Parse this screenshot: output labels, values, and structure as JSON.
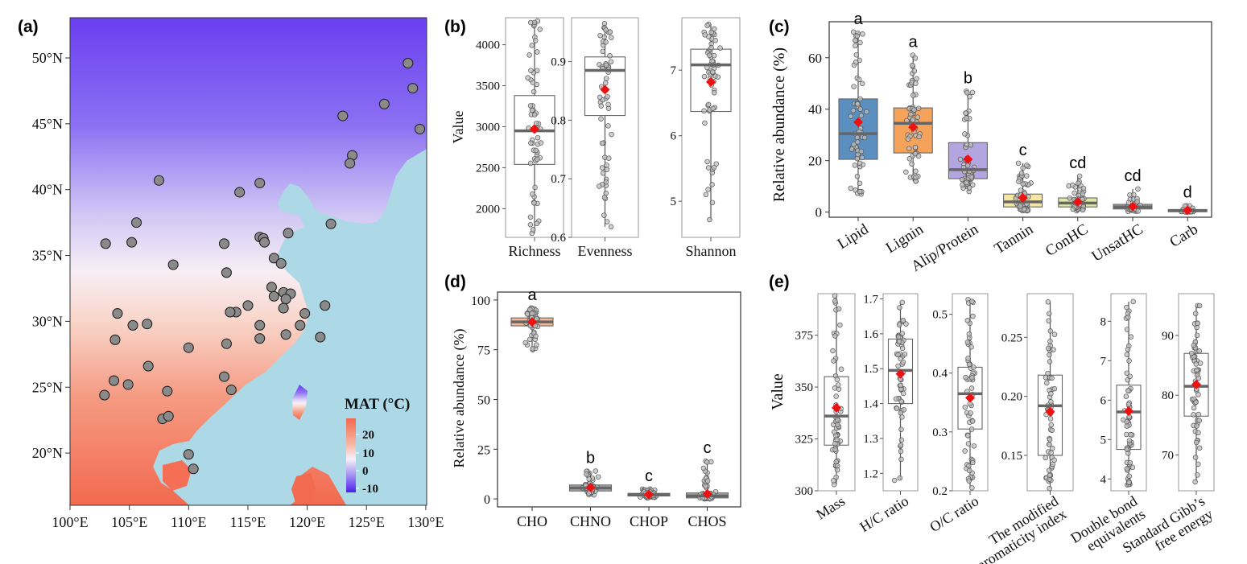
{
  "colors": {
    "cold": "#6a3ff0",
    "mid": "#f6f0fb",
    "warm": "#f26a4f",
    "sea": "#add8e6",
    "site_fill": "#8a8a8a",
    "mean_marker": "#ee1111",
    "jitter_fill": "#bfbfbf",
    "box_fill_c": [
      "#5b8fbf",
      "#f5a25a",
      "#b3a6e0",
      "#f6e6a3",
      "#dfe9a4",
      "#aaaaaa",
      "#aaaaaa"
    ],
    "box_fill_d": [
      "#f5b79a",
      "#aaaaaa",
      "#aaaaaa",
      "#aaaaaa"
    ]
  },
  "panels": {
    "a": {
      "label": "(a)"
    },
    "b": {
      "label": "(b)"
    },
    "c": {
      "label": "(c)"
    },
    "d": {
      "label": "(d)"
    },
    "e": {
      "label": "(e)"
    }
  },
  "map": {
    "lon_ticks": [
      "100°E",
      "105°E",
      "110°E",
      "115°E",
      "120°E",
      "125°E",
      "130°E"
    ],
    "lat_ticks": [
      "50°N",
      "45°N",
      "40°N",
      "35°N",
      "30°N",
      "25°N",
      "20°N"
    ],
    "legend_title": "MAT (°C)",
    "legend_ticks": [
      "20",
      "10",
      "0",
      "-10"
    ],
    "sites": [
      [
        128.5,
        49.6
      ],
      [
        128.9,
        47.7
      ],
      [
        129.5,
        44.6
      ],
      [
        126.5,
        46.5
      ],
      [
        123.0,
        45.6
      ],
      [
        123.8,
        42.6
      ],
      [
        123.6,
        42.0
      ],
      [
        114.3,
        39.8
      ],
      [
        116.0,
        40.5
      ],
      [
        107.5,
        40.7
      ],
      [
        105.6,
        37.5
      ],
      [
        103.0,
        35.9
      ],
      [
        105.2,
        36.0
      ],
      [
        113.0,
        35.9
      ],
      [
        116.0,
        36.4
      ],
      [
        116.3,
        36.3
      ],
      [
        116.4,
        36.0
      ],
      [
        118.4,
        36.7
      ],
      [
        122.0,
        37.4
      ],
      [
        117.2,
        34.8
      ],
      [
        117.8,
        34.4
      ],
      [
        113.2,
        33.7
      ],
      [
        108.7,
        34.3
      ],
      [
        117.0,
        32.6
      ],
      [
        117.2,
        31.9
      ],
      [
        118.0,
        32.2
      ],
      [
        118.6,
        32.1
      ],
      [
        118.2,
        31.7
      ],
      [
        118.0,
        31.0
      ],
      [
        119.8,
        30.6
      ],
      [
        121.5,
        31.2
      ],
      [
        116.0,
        29.7
      ],
      [
        116.0,
        28.7
      ],
      [
        115.0,
        31.2
      ],
      [
        114.0,
        30.7
      ],
      [
        113.5,
        30.7
      ],
      [
        113.2,
        28.3
      ],
      [
        110.0,
        28.0
      ],
      [
        119.4,
        29.7
      ],
      [
        118.2,
        29.0
      ],
      [
        121.1,
        28.8
      ],
      [
        104.0,
        30.6
      ],
      [
        103.8,
        28.6
      ],
      [
        105.3,
        29.7
      ],
      [
        106.5,
        29.8
      ],
      [
        106.6,
        26.6
      ],
      [
        103.7,
        25.5
      ],
      [
        102.9,
        24.4
      ],
      [
        104.9,
        25.2
      ],
      [
        108.2,
        24.7
      ],
      [
        113.0,
        25.8
      ],
      [
        113.6,
        24.8
      ],
      [
        107.8,
        22.6
      ],
      [
        108.3,
        22.8
      ],
      [
        110.0,
        19.9
      ],
      [
        110.4,
        18.8
      ]
    ]
  },
  "chart_data": [
    {
      "type": "box",
      "panel": "b",
      "ylabel": "Value",
      "groups": [
        {
          "name": "Richness",
          "ylim": [
            1650,
            4330
          ],
          "ticks": [
            2000,
            2500,
            3000,
            3500,
            4000
          ],
          "tick_labels": [
            "2000",
            "2500",
            "3000",
            "3500",
            "4000"
          ],
          "q1": 2540,
          "median": 2950,
          "q3": 3380,
          "whisker_low": 1700,
          "whisker_high": 4290,
          "mean": 2970
        },
        {
          "name": "Evenness",
          "ylim": [
            0.6,
            0.975
          ],
          "ticks": [
            0.6,
            0.7,
            0.8,
            0.9
          ],
          "tick_labels": [
            "0.6",
            "0.7",
            "0.8",
            "0.9"
          ],
          "q1": 0.808,
          "median": 0.885,
          "q3": 0.908,
          "whisker_low": 0.618,
          "whisker_high": 0.965,
          "mean": 0.852
        },
        {
          "name": "Shannon",
          "ylim": [
            4.45,
            7.8
          ],
          "ticks": [
            5,
            6,
            7
          ],
          "tick_labels": [
            "5",
            "6",
            "7"
          ],
          "q1": 6.37,
          "median": 7.08,
          "q3": 7.32,
          "whisker_low": 4.72,
          "whisker_high": 7.7,
          "mean": 6.82
        }
      ]
    },
    {
      "type": "box",
      "panel": "c",
      "ylabel": "Relative abundance (%)",
      "ylim": [
        -2,
        74
      ],
      "yticks": [
        0,
        20,
        40,
        60
      ],
      "ytick_labels": [
        "0",
        "20",
        "40",
        "60"
      ],
      "categories": [
        "Lipid",
        "Lignin",
        "Alip/Protein",
        "Tannin",
        "ConHC",
        "UnsatHC",
        "Carb"
      ],
      "letters": [
        "a",
        "a",
        "b",
        "c",
        "cd",
        "cd",
        "d"
      ],
      "q1": [
        20.5,
        23,
        13,
        2.0,
        2.0,
        1.2,
        0.2
      ],
      "median": [
        30.5,
        34.5,
        16.5,
        4.0,
        3.5,
        2.0,
        0.5
      ],
      "q3": [
        44,
        40.5,
        27,
        7.0,
        5.5,
        3.0,
        1.0
      ],
      "whisker_low": [
        7,
        12,
        8,
        0.5,
        0.5,
        0.3,
        0.0
      ],
      "whisker_high": [
        70,
        61,
        47,
        19,
        14,
        9,
        2.5
      ],
      "mean": [
        35,
        33,
        20.5,
        5.5,
        4.0,
        2.2,
        0.7
      ]
    },
    {
      "type": "box",
      "panel": "d",
      "ylabel": "Relative abundance (%)",
      "ylim": [
        -4,
        104
      ],
      "yticks": [
        0,
        25,
        50,
        75,
        100
      ],
      "ytick_labels": [
        "0",
        "25",
        "50",
        "75",
        "100"
      ],
      "categories": [
        "CHO",
        "CHNO",
        "CHOP",
        "CHOS"
      ],
      "letters": [
        "a",
        "b",
        "c",
        "c"
      ],
      "q1": [
        87,
        4.0,
        1.5,
        0.5
      ],
      "median": [
        89,
        5.5,
        2.0,
        1.5
      ],
      "q3": [
        91,
        7.0,
        2.8,
        3.0
      ],
      "whisker_low": [
        75,
        2.0,
        0.5,
        0.0
      ],
      "whisker_high": [
        96,
        14,
        5.0,
        19
      ],
      "mean": [
        89,
        5.8,
        2.2,
        2.5
      ]
    },
    {
      "type": "box",
      "panel": "e",
      "ylabel": "Value",
      "groups": [
        {
          "name": "Mass",
          "ylim": [
            300,
            395
          ],
          "ticks": [
            300,
            325,
            350,
            375
          ],
          "tick_labels": [
            "300",
            "325",
            "350",
            "375"
          ],
          "q1": 322,
          "median": 336,
          "q3": 355,
          "whisker_low": 303,
          "whisker_high": 394,
          "mean": 340
        },
        {
          "name": "H/C ratio",
          "ylim": [
            1.15,
            1.715
          ],
          "ticks": [
            1.2,
            1.3,
            1.4,
            1.5,
            1.6,
            1.7
          ],
          "tick_labels": [
            "1.2",
            "1.3",
            "1.4",
            "1.5",
            "1.6",
            "1.7"
          ],
          "q1": 1.4,
          "median": 1.495,
          "q3": 1.585,
          "whisker_low": 1.18,
          "whisker_high": 1.69,
          "mean": 1.485
        },
        {
          "name": "O/C ratio",
          "ylim": [
            0.2,
            0.535
          ],
          "ticks": [
            0.2,
            0.3,
            0.4,
            0.5
          ],
          "tick_labels": [
            "0.2",
            "0.3",
            "0.4",
            "0.5"
          ],
          "q1": 0.305,
          "median": 0.365,
          "q3": 0.41,
          "whisker_low": 0.205,
          "whisker_high": 0.525,
          "mean": 0.358
        },
        {
          "name": "The modified aromaticity index",
          "ylim": [
            0.12,
            0.287
          ],
          "ticks": [
            0.15,
            0.2,
            0.25
          ],
          "tick_labels": [
            "0.15",
            "0.20",
            "0.25"
          ],
          "q1": 0.15,
          "median": 0.192,
          "q3": 0.218,
          "whisker_low": 0.122,
          "whisker_high": 0.28,
          "mean": 0.187
        },
        {
          "name": "Double bond equivalents",
          "ylim": [
            3.7,
            8.7
          ],
          "ticks": [
            4,
            5,
            6,
            7,
            8
          ],
          "tick_labels": [
            "4",
            "5",
            "6",
            "7",
            "8"
          ],
          "q1": 4.75,
          "median": 5.7,
          "q3": 6.38,
          "whisker_low": 3.85,
          "whisker_high": 8.5,
          "mean": 5.72
        },
        {
          "name": "Standard Gibb’s free energy",
          "ylim": [
            64,
            97
          ],
          "ticks": [
            70,
            80,
            90
          ],
          "tick_labels": [
            "70",
            "80",
            "90"
          ],
          "q1": 76.5,
          "median": 81.5,
          "q3": 87,
          "whisker_low": 65.5,
          "whisker_high": 95,
          "mean": 81.8
        }
      ]
    }
  ]
}
